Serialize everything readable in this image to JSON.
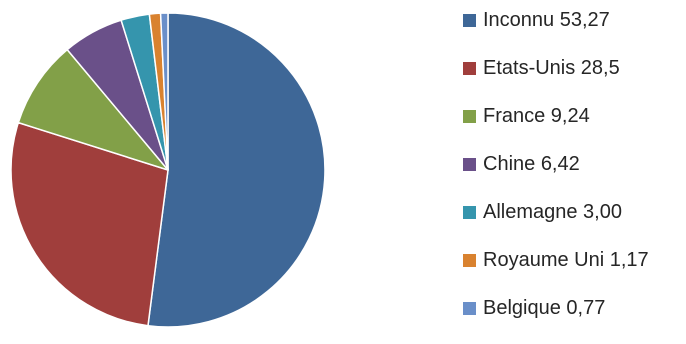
{
  "chart_data": {
    "type": "pie",
    "slices": [
      {
        "label": "Inconnu 53,27",
        "value": 53.27,
        "color": "#3E6797"
      },
      {
        "label": "Etats-Unis 28,5",
        "value": 28.5,
        "color": "#A03E3C"
      },
      {
        "label": "France 9,24",
        "value": 9.24,
        "color": "#82A048"
      },
      {
        "label": "Chine 6,42",
        "value": 6.42,
        "color": "#6A5089"
      },
      {
        "label": "Allemagne 3,00",
        "value": 3.0,
        "color": "#3595AD"
      },
      {
        "label": "Royaume Uni 1,17",
        "value": 1.17,
        "color": "#D9822F"
      },
      {
        "label": "Belgique 0,77",
        "value": 0.77,
        "color": "#6A8FC9"
      }
    ],
    "legend_position": "right",
    "start_angle": "top",
    "direction": "clockwise"
  }
}
